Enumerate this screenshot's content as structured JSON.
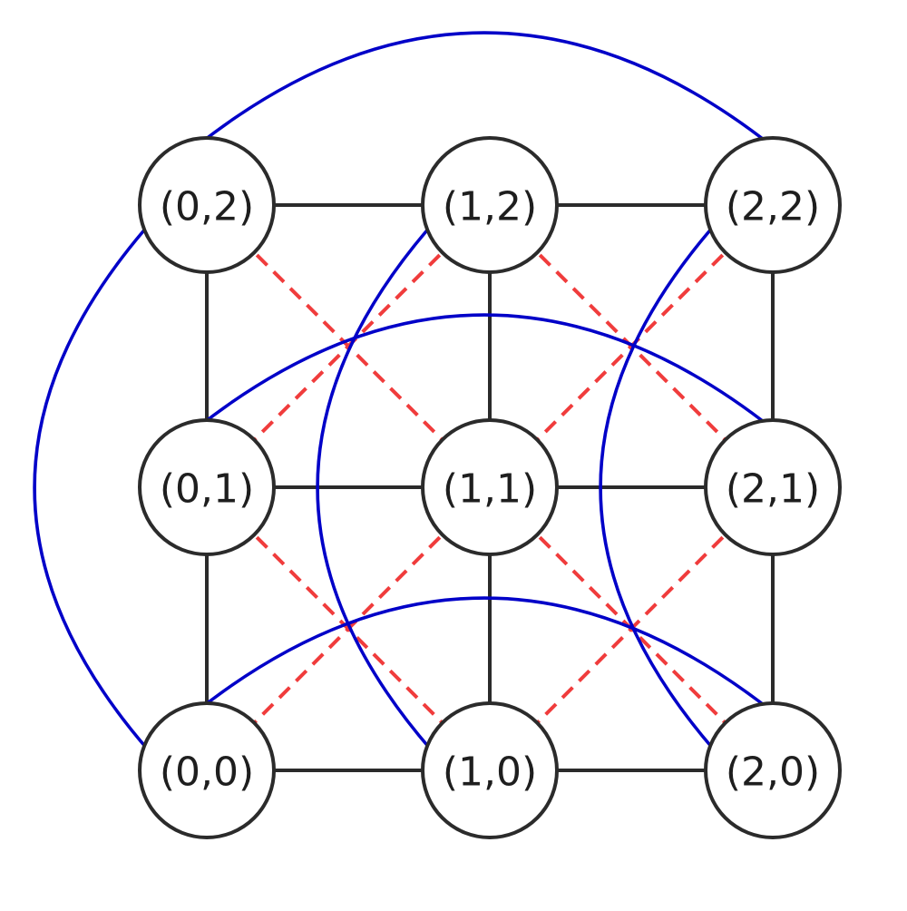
{
  "colors": {
    "grid_edge": "#2b2b2b",
    "diagonal_edge": "#f03c3c",
    "arc_edge": "#0000c8"
  },
  "nodes": [
    {
      "id": "0-2",
      "label": "(0,2)"
    },
    {
      "id": "1-2",
      "label": "(1,2)"
    },
    {
      "id": "2-2",
      "label": "(2,2)"
    },
    {
      "id": "0-1",
      "label": "(0,1)"
    },
    {
      "id": "1-1",
      "label": "(1,1)"
    },
    {
      "id": "2-1",
      "label": "(2,1)"
    },
    {
      "id": "0-0",
      "label": "(0,0)"
    },
    {
      "id": "1-0",
      "label": "(1,0)"
    },
    {
      "id": "2-0",
      "label": "(2,0)"
    }
  ],
  "edges": {
    "grid": [
      [
        "0-2",
        "1-2"
      ],
      [
        "1-2",
        "2-2"
      ],
      [
        "0-1",
        "1-1"
      ],
      [
        "1-1",
        "2-1"
      ],
      [
        "0-0",
        "1-0"
      ],
      [
        "1-0",
        "2-0"
      ],
      [
        "0-2",
        "0-1"
      ],
      [
        "0-1",
        "0-0"
      ],
      [
        "1-2",
        "1-1"
      ],
      [
        "1-1",
        "1-0"
      ],
      [
        "2-2",
        "2-1"
      ],
      [
        "2-1",
        "2-0"
      ]
    ],
    "diagonal": [
      [
        "0-2",
        "1-1"
      ],
      [
        "1-2",
        "0-1"
      ],
      [
        "1-2",
        "2-1"
      ],
      [
        "2-2",
        "1-1"
      ],
      [
        "0-1",
        "1-0"
      ],
      [
        "1-1",
        "0-0"
      ],
      [
        "1-1",
        "2-0"
      ],
      [
        "2-1",
        "1-0"
      ]
    ],
    "arcs": [
      [
        "0-2",
        "2-2"
      ],
      [
        "0-1",
        "2-1"
      ],
      [
        "0-0",
        "2-0"
      ],
      [
        "0-2",
        "0-0"
      ],
      [
        "1-2",
        "1-0"
      ],
      [
        "2-2",
        "2-0"
      ]
    ]
  }
}
